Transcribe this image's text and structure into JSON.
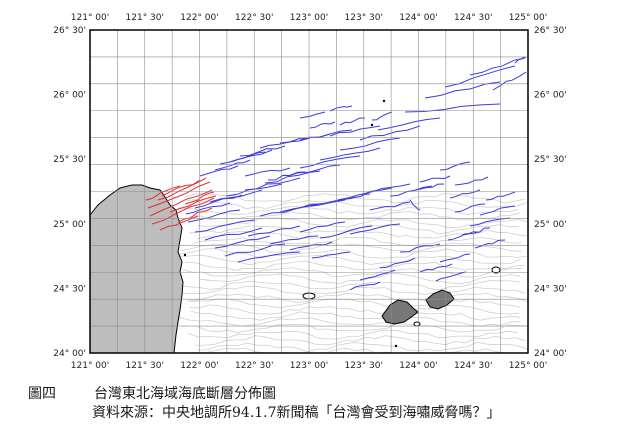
{
  "map": {
    "top_lon_labels": [
      "121° 00'",
      "121° 30'",
      "122° 00'",
      "122° 30'",
      "123° 00'",
      "123° 30'",
      "124° 00'",
      "124° 30'",
      "125° 00'"
    ],
    "bottom_lon_labels": [
      "121° 00'",
      "121° 30'",
      "122° 00'",
      "122° 30'",
      "123° 00'",
      "123° 30'",
      "124° 00'",
      "124° 30'",
      "125° 00'"
    ],
    "left_lat_labels": [
      "26° 30'",
      "26° 00'",
      "25° 30'",
      "25° 00'",
      "24° 30'",
      "24° 00'"
    ],
    "right_lat_labels": [
      "26° 30'",
      "26° 00'",
      "25° 30'",
      "25° 00'",
      "24° 30'",
      "24° 00'"
    ],
    "colors": {
      "grid": "#8c8c8c",
      "land": "#bdbdbd",
      "bathymetry": "#cfcfcf",
      "fault_blue": "#3a3adf",
      "fault_red": "#e03030",
      "frame": "#000000"
    }
  },
  "caption": {
    "figure_label": "圖四",
    "title": "台灣東北海域海底斷層分佈圖",
    "source": "資料來源：中央地調所94.1.7新聞稿「台灣會受到海嘯威脅嗎？」"
  }
}
